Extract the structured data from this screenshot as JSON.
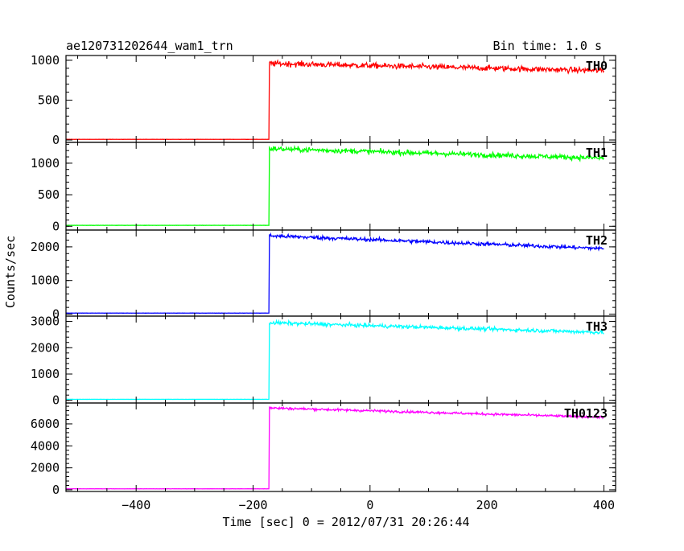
{
  "header": {
    "title": "ae120731202644_wam1_trn",
    "bin_time": "Bin time: 1.0 s"
  },
  "chart_data": {
    "type": "line",
    "title": "ae120731202644_wam1_trn",
    "subtitle": "Bin time: 1.0 s",
    "xlabel": "Time [sec] 0 = 2012/07/31 20:26:44",
    "ylabel": "Counts/sec",
    "xlim": [
      -520,
      420
    ],
    "x_ticks": [
      -400,
      -200,
      0,
      200,
      400
    ],
    "x_tick_labels": [
      "−400",
      "−200",
      "0",
      "200",
      "400"
    ],
    "x_start": -520,
    "x_end": 400,
    "step_time": -172,
    "grid": false,
    "series": [
      {
        "name": "TH0",
        "color": "#ff0000",
        "ylim": [
          -30,
          1060
        ],
        "yticks": [
          0,
          500,
          1000
        ],
        "ytick_labels": [
          "0",
          "500",
          "1000"
        ],
        "baseline": 8,
        "peak": 960,
        "end": 870,
        "noise": 35
      },
      {
        "name": "TH1",
        "color": "#00ff00",
        "ylim": [
          -60,
          1330
        ],
        "yticks": [
          0,
          500,
          1000
        ],
        "ytick_labels": [
          "0",
          "500",
          "1000"
        ],
        "baseline": 15,
        "peak": 1230,
        "end": 1080,
        "noise": 40
      },
      {
        "name": "TH2",
        "color": "#0000ff",
        "ylim": [
          -60,
          2500
        ],
        "yticks": [
          0,
          1000,
          2000
        ],
        "ytick_labels": [
          "0",
          "1000",
          "2000"
        ],
        "baseline": 30,
        "peak": 2330,
        "end": 1950,
        "noise": 55
      },
      {
        "name": "TH3",
        "color": "#00ffff",
        "ylim": [
          -100,
          3200
        ],
        "yticks": [
          0,
          1000,
          2000,
          3000
        ],
        "ytick_labels": [
          "0",
          "1000",
          "2000",
          "3000"
        ],
        "baseline": 40,
        "peak": 2950,
        "end": 2580,
        "noise": 70
      },
      {
        "name": "TH0123",
        "color": "#ff00ff",
        "ylim": [
          -150,
          7900
        ],
        "yticks": [
          0,
          2000,
          4000,
          6000
        ],
        "ytick_labels": [
          "0",
          "2000",
          "4000",
          "6000"
        ],
        "baseline": 90,
        "peak": 7450,
        "end": 6600,
        "noise": 110
      }
    ]
  }
}
